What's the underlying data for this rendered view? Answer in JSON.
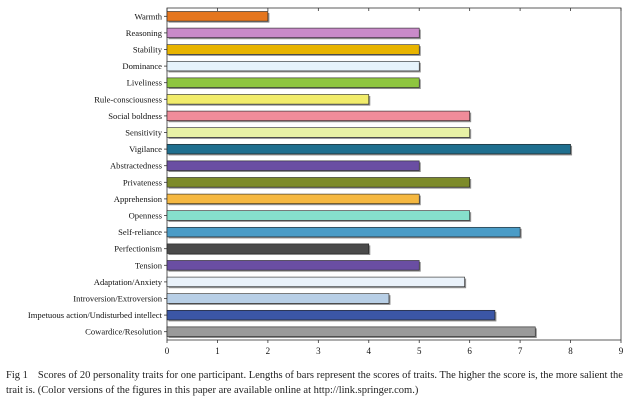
{
  "chart_data": {
    "type": "bar",
    "orientation": "horizontal",
    "xlim": [
      0,
      9
    ],
    "xticks": [
      0,
      1,
      2,
      3,
      4,
      5,
      6,
      7,
      8,
      9
    ],
    "grid": false,
    "bars": [
      {
        "label": "Warmth",
        "value": 2,
        "color": "#e5761e"
      },
      {
        "label": "Reasoning",
        "value": 5,
        "color": "#c98ac9"
      },
      {
        "label": "Stability",
        "value": 5,
        "color": "#e8b400"
      },
      {
        "label": "Dominance",
        "value": 5,
        "color": "#e6f3fb"
      },
      {
        "label": "Liveliness",
        "value": 5,
        "color": "#8ec63f"
      },
      {
        "label": "Rule-consciousness",
        "value": 4,
        "color": "#f1ec6b"
      },
      {
        "label": "Social boldness",
        "value": 6,
        "color": "#f08c9a"
      },
      {
        "label": "Sensitivity",
        "value": 6,
        "color": "#e8f2a6"
      },
      {
        "label": "Vigilance",
        "value": 8,
        "color": "#1f6f8f"
      },
      {
        "label": "Abstractedness",
        "value": 5,
        "color": "#6a4ea3"
      },
      {
        "label": "Privateness",
        "value": 6,
        "color": "#7d8b2a"
      },
      {
        "label": "Apprehension",
        "value": 5,
        "color": "#f5b841"
      },
      {
        "label": "Openness",
        "value": 6,
        "color": "#86e0cc"
      },
      {
        "label": "Self-reliance",
        "value": 7,
        "color": "#4a9cc7"
      },
      {
        "label": "Perfectionism",
        "value": 4,
        "color": "#4a4a4a"
      },
      {
        "label": "Tension",
        "value": 5,
        "color": "#6a4ea3"
      },
      {
        "label": "Adaptation/Anxiety",
        "value": 5.9,
        "color": "#eaf2fa"
      },
      {
        "label": "Introversion/Extroversion",
        "value": 4.4,
        "color": "#b8cfe6"
      },
      {
        "label": "Impetuous action/Undisturbed intellect",
        "value": 6.5,
        "color": "#3b56a6"
      },
      {
        "label": "Cowardice/Resolution",
        "value": 7.3,
        "color": "#9a9a9a"
      }
    ]
  },
  "caption": {
    "label": "Fig 1",
    "text": "Scores of 20 personality traits for one participant. Lengths of bars represent the scores of traits. The higher the score is, the more salient the trait is. (Color versions of the figures in this paper are available online at http://link.springer.com.)"
  }
}
